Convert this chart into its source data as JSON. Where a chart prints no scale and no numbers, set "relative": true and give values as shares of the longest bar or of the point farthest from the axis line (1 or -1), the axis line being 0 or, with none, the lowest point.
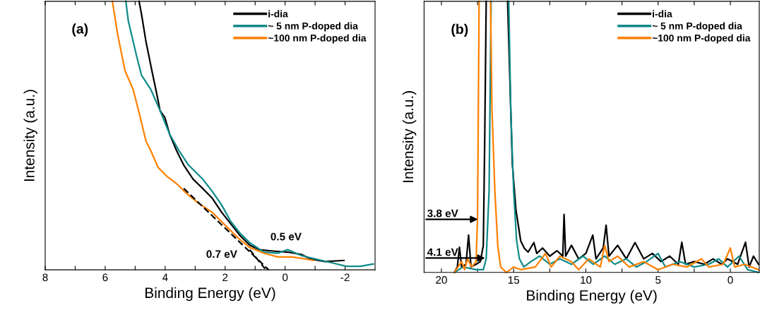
{
  "chart_data": [
    {
      "type": "line",
      "relative": true,
      "xlabel": "Binding Energy (eV)",
      "ylabel": "Intensity (a.u.)",
      "xlim": [
        8,
        -3
      ],
      "xticks": [
        8,
        {
          "value": 7,
          "label": null
        },
        6,
        {
          "value": 5,
          "label": null
        },
        4,
        {
          "value": 3,
          "label": null
        },
        2,
        {
          "value": 1,
          "label": null
        },
        0,
        {
          "value": -1,
          "label": null
        },
        -2
      ],
      "tick_labels": "x",
      "legend": "top right",
      "grid": false,
      "annotations": [
        "(a)",
        "0.5 eV",
        "0.7 eV"
      ],
      "series": [
        {
          "name": "i-dia",
          "color": "#000000",
          "x": [
            4.87,
            4.79,
            4.64,
            4.44,
            4.28,
            4.17,
            4.01,
            3.85,
            3.62,
            3.38,
            3.07,
            2.75,
            2.44,
            2.12,
            1.81,
            1.5,
            1.18,
            0.87,
            0.4,
            -0.08,
            -0.55,
            -0.86,
            -1.33,
            -1.96
          ],
          "values": [
            1.0,
            0.953,
            0.85,
            0.74,
            0.655,
            0.593,
            0.567,
            0.505,
            0.444,
            0.39,
            0.338,
            0.303,
            0.268,
            0.215,
            0.171,
            0.127,
            0.092,
            0.075,
            0.07,
            0.066,
            0.057,
            0.04,
            0.031,
            0.035
          ]
        },
        {
          "name": "~ 5 nm P-doped dia",
          "color": "#0f8a8a",
          "x": [
            5.31,
            5.23,
            4.95,
            4.79,
            4.48,
            4.17,
            3.85,
            3.54,
            3.22,
            2.75,
            2.44,
            2.12,
            1.81,
            1.5,
            1.18,
            0.71,
            0.24,
            -0.08,
            -0.55,
            -1.02,
            -1.57,
            -2.04,
            -2.51,
            -2.94
          ],
          "values": [
            1.0,
            0.927,
            0.795,
            0.725,
            0.672,
            0.593,
            0.505,
            0.444,
            0.39,
            0.338,
            0.294,
            0.242,
            0.18,
            0.136,
            0.101,
            0.066,
            0.062,
            0.075,
            0.053,
            0.04,
            0.026,
            0.013,
            0.013,
            0.022
          ]
        },
        {
          "name": "~100 nm P-doped dia",
          "color": "#ff8000",
          "x": [
            5.76,
            5.58,
            5.34,
            5.07,
            4.95,
            4.79,
            4.64,
            4.48,
            4.24,
            3.93,
            3.62,
            3.3,
            2.91,
            2.44,
            1.97,
            1.57,
            1.18,
            0.71,
            0.24,
            -0.23,
            -0.7,
            -0.94
          ],
          "values": [
            1.0,
            0.874,
            0.742,
            0.672,
            0.62,
            0.549,
            0.479,
            0.444,
            0.382,
            0.347,
            0.321,
            0.286,
            0.25,
            0.215,
            0.163,
            0.119,
            0.083,
            0.062,
            0.048,
            0.048,
            0.04,
            0.035
          ]
        },
        {
          "type": "line",
          "line_style": "dashed",
          "color": "#000000",
          "x": [
            3.38,
            0.55
          ],
          "values": [
            0.303,
            0.0
          ]
        },
        {
          "type": "line",
          "line_style": "dashed",
          "color": "#000000",
          "x": [
            1.18,
            0.67
          ],
          "values": [
            0.075,
            0.004
          ]
        }
      ]
    },
    {
      "type": "line",
      "relative": true,
      "xlabel": "Binding Energy (eV)",
      "ylabel": "Intensity (a.u.)",
      "xlim": [
        21.2,
        -2
      ],
      "xticks": [
        20,
        {
          "value": 17.5,
          "label": null
        },
        15,
        {
          "value": 12.5,
          "label": null
        },
        10,
        {
          "value": 7.5,
          "label": null
        },
        5,
        {
          "value": 2.5,
          "label": null
        },
        0
      ],
      "tick_labels": "x",
      "legend": "top right",
      "grid": false,
      "annotations": [
        "(b)",
        {
          "text": "3.8 eV",
          "x": 17.34,
          "y": 0.196
        },
        {
          "text": "4.1 eV",
          "x": 16.84,
          "y": 0.053
        }
      ],
      "series": [
        {
          "name": "i-dia",
          "color": "#000000",
          "x": [
            19.1,
            18.9,
            18.75,
            18.6,
            18.3,
            18.12,
            17.95,
            17.6,
            17.3,
            17.1,
            17.0,
            16.9,
            16.2,
            15.42,
            15.2,
            15.09,
            14.84,
            14.51,
            14.26,
            14.0,
            13.6,
            13.4,
            13.0,
            12.5,
            12.0,
            11.6,
            11.51,
            11.4,
            11.0,
            10.5,
            10.0,
            9.52,
            9.3,
            8.8,
            8.6,
            8.4,
            7.8,
            7.2,
            6.6,
            6.0,
            5.4,
            4.8,
            4.2,
            3.6,
            3.36,
            3.1,
            2.5,
            1.8,
            1.2,
            0.6,
            0.2,
            -0.5,
            -1.05,
            -1.3,
            -1.6,
            -1.95
          ],
          "values": [
            0.0,
            0.02,
            0.093,
            0.02,
            0.03,
            0.138,
            0.02,
            0.03,
            0.04,
            0.1,
            0.5,
            1.0,
            null,
            1.0,
            0.6,
            0.4,
            0.23,
            0.116,
            0.089,
            0.075,
            0.11,
            0.07,
            0.09,
            0.06,
            0.08,
            0.06,
            0.214,
            0.06,
            0.1,
            0.05,
            0.07,
            0.138,
            0.05,
            0.09,
            0.174,
            0.06,
            0.1,
            0.05,
            0.11,
            0.05,
            0.07,
            0.04,
            0.06,
            0.03,
            0.111,
            0.03,
            0.04,
            0.03,
            0.05,
            0.03,
            0.05,
            0.03,
            0.111,
            0.02,
            0.06,
            0.03
          ]
        },
        {
          "name": "~ 5 nm P-doped dia",
          "color": "#0f8a8a",
          "x": [
            19.1,
            18.5,
            17.6,
            17.1,
            16.9,
            16.7,
            16.56,
            16.0,
            15.34,
            15.2,
            15.0,
            14.8,
            14.6,
            14.3,
            13.8,
            13.2,
            12.5,
            11.8,
            11.0,
            10.2,
            9.5,
            8.7,
            8.0,
            7.2,
            6.5,
            5.8,
            5.0,
            4.5,
            3.5,
            2.5,
            1.5,
            0.8,
            0.2,
            -0.6,
            -1.2,
            -1.95
          ],
          "values": [
            0.0,
            0.02,
            0.01,
            0.01,
            0.05,
            0.3,
            1.0,
            null,
            1.0,
            0.6,
            0.3,
            0.12,
            0.05,
            0.02,
            0.04,
            0.06,
            0.03,
            0.05,
            0.03,
            0.06,
            0.03,
            0.06,
            0.03,
            0.05,
            0.02,
            0.04,
            0.07,
            0.02,
            0.04,
            0.02,
            0.03,
            0.05,
            0.02,
            0.06,
            0.01,
            0.0
          ]
        },
        {
          "name": "~100 nm P-doped dia",
          "color": "#ff8000",
          "x": [
            19.1,
            18.6,
            18.4,
            18.2,
            17.9,
            17.6,
            17.5,
            17.39,
            17.0,
            16.6,
            16.5,
            16.3,
            16.1,
            15.9,
            15.5,
            15.0,
            14.5,
            13.5,
            12.8,
            12.4,
            11.8,
            11.0,
            10.5,
            9.8,
            9.0,
            8.7,
            8.4,
            7.8,
            7.0,
            6.0,
            5.0,
            4.0,
            3.0,
            2.0,
            1.5,
            0.5,
            0.0,
            -0.3,
            -1.0,
            -1.95
          ],
          "values": [
            0.0,
            0.04,
            0.01,
            0.05,
            0.02,
            0.04,
            0.2,
            1.0,
            null,
            1.0,
            0.6,
            0.3,
            0.1,
            0.02,
            0.0,
            0.02,
            0.01,
            0.02,
            0.07,
            0.02,
            0.06,
            0.04,
            0.01,
            0.05,
            0.02,
            0.1,
            0.04,
            0.06,
            0.02,
            0.04,
            0.01,
            0.03,
            0.02,
            0.05,
            0.02,
            0.03,
            0.09,
            0.02,
            0.03,
            0.01
          ]
        }
      ]
    }
  ]
}
